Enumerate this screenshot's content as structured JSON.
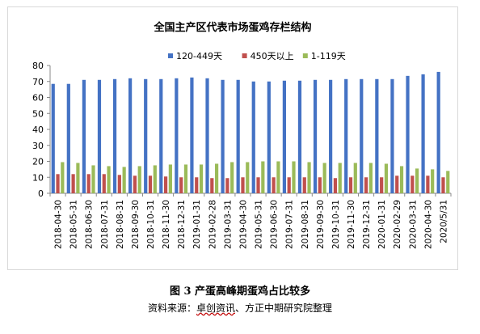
{
  "figure": {
    "caption": "图 3  产蛋高峰期蛋鸡占比较多",
    "source_prefix": "资料来源：",
    "source_underlined": "卓创资讯",
    "source_suffix": "、方正中期研究院整理"
  },
  "chart_data": {
    "type": "bar",
    "title": "全国主产区代表市场蛋鸡存栏结构",
    "xlabel": "",
    "ylabel": "",
    "ylim": [
      0,
      80
    ],
    "yticks": [
      0,
      10,
      20,
      30,
      40,
      50,
      60,
      70,
      80
    ],
    "grid": false,
    "legend": "top-right",
    "categories": [
      "2018-04-30",
      "2018-05-31",
      "2018-06-30",
      "2018-07-31",
      "2018-08-31",
      "2018-09-30",
      "2018-10-31",
      "2018-11-30",
      "2018-12-31",
      "2019-01-31",
      "2019-02-28",
      "2019-03-31",
      "2019-04-30",
      "2019-05-31",
      "2019-06-30",
      "2019-07-31",
      "2019-08-31",
      "2019-09-30",
      "2019-10-31",
      "2019-11-30",
      "2019-12-31",
      "2020-01-31",
      "2020-02-29",
      "2020-03-31",
      "2020-04-30",
      "2020/5/31"
    ],
    "series": [
      {
        "name": "120-449天",
        "color": "#4472c4",
        "values": [
          68.5,
          68.5,
          71,
          71,
          71.5,
          72,
          71.5,
          71.5,
          72,
          72.5,
          72,
          71,
          71,
          70,
          70,
          70.5,
          70.5,
          71,
          71,
          71.5,
          71.5,
          71.5,
          71.5,
          73.5,
          74.5,
          76
        ]
      },
      {
        "name": "450天以上",
        "color": "#c0504d",
        "values": [
          12,
          12,
          12,
          12,
          11.5,
          11,
          11,
          10.5,
          10,
          10,
          9.5,
          9.5,
          10,
          10,
          10,
          10,
          10,
          10,
          9.5,
          10,
          10,
          10,
          11,
          11,
          11,
          10
        ]
      },
      {
        "name": "1-119天",
        "color": "#9bbb59",
        "values": [
          19.5,
          19,
          17.5,
          17,
          16.5,
          17,
          17.5,
          18,
          18,
          18,
          18.5,
          19.5,
          19.5,
          20,
          20,
          20,
          19.5,
          19,
          19,
          19,
          19,
          18.5,
          17,
          15.5,
          15,
          14
        ]
      }
    ]
  }
}
